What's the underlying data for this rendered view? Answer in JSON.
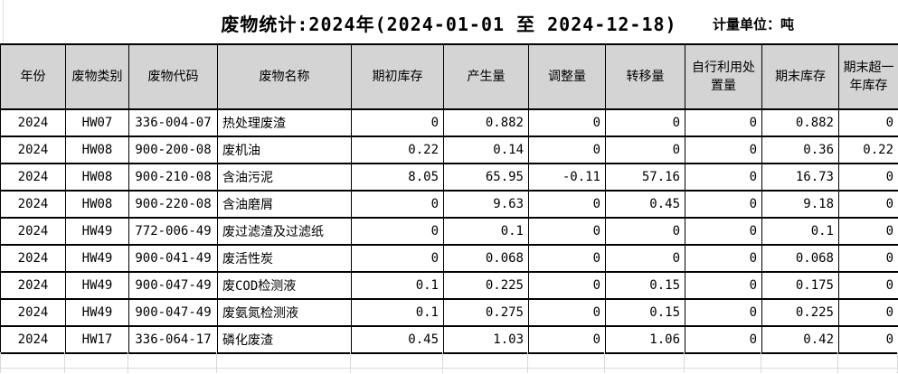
{
  "title": "废物统计:2024年(2024-01-01 至 2024-12-18)",
  "unit_label": "计量单位：吨",
  "table": {
    "headers": [
      "年份",
      "废物类别",
      "废物代码",
      "废物名称",
      "期初库存",
      "产生量",
      "调整量",
      "转移量",
      "自行利用处置量",
      "期末库存",
      "期末超一年库存"
    ],
    "rows": [
      [
        "2024",
        "HW07",
        "336-004-07",
        "热处理废渣",
        "0",
        "0.882",
        "0",
        "0",
        "0",
        "0.882",
        "0"
      ],
      [
        "2024",
        "HW08",
        "900-200-08",
        "废机油",
        "0.22",
        "0.14",
        "0",
        "0",
        "0",
        "0.36",
        "0.22"
      ],
      [
        "2024",
        "HW08",
        "900-210-08",
        "含油污泥",
        "8.05",
        "65.95",
        "-0.11",
        "57.16",
        "0",
        "16.73",
        "0"
      ],
      [
        "2024",
        "HW08",
        "900-220-08",
        "含油磨屑",
        "0",
        "9.63",
        "0",
        "0.45",
        "0",
        "9.18",
        "0"
      ],
      [
        "2024",
        "HW49",
        "772-006-49",
        "废过滤渣及过滤纸",
        "0",
        "0.1",
        "0",
        "0",
        "0",
        "0.1",
        "0"
      ],
      [
        "2024",
        "HW49",
        "900-041-49",
        "废活性炭",
        "0",
        "0.068",
        "0",
        "0",
        "0",
        "0.068",
        "0"
      ],
      [
        "2024",
        "HW49",
        "900-047-49",
        "废COD检测液",
        "0.1",
        "0.225",
        "0",
        "0.15",
        "0",
        "0.175",
        "0"
      ],
      [
        "2024",
        "HW49",
        "900-047-49",
        "废氨氮检测液",
        "0.1",
        "0.275",
        "0",
        "0.15",
        "0",
        "0.225",
        "0"
      ],
      [
        "2024",
        "HW17",
        "336-064-17",
        "磷化废渣",
        "0.45",
        "1.03",
        "0",
        "1.06",
        "0",
        "0.42",
        "0"
      ]
    ]
  },
  "colors": {
    "header_bg": "#d4d4d4",
    "table_border": "#000000",
    "empty_gridline": "#d9d9d9",
    "background": "#ffffff"
  }
}
